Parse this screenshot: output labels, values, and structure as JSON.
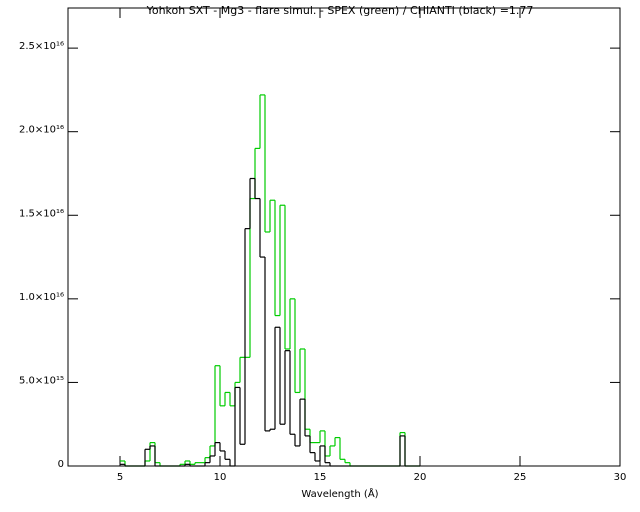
{
  "chart_data": {
    "type": "histogram",
    "title": "Yohkoh SXT - Mg3 - flare simul. -  SPEX (green) / CHIANTI (black) =1.77",
    "xlabel": "Wavelength (Å)",
    "bins": [
      5,
      5.25,
      5.5,
      5.75,
      6,
      6.25,
      6.5,
      6.75,
      7,
      7.25,
      7.5,
      7.75,
      8,
      8.25,
      8.5,
      8.75,
      9,
      9.25,
      9.5,
      9.75,
      10,
      10.25,
      10.5,
      10.75,
      11,
      11.25,
      11.5,
      11.75,
      12,
      12.25,
      12.5,
      12.75,
      13,
      13.25,
      13.5,
      13.75,
      14,
      14.25,
      14.5,
      14.75,
      15,
      15.25,
      15.5,
      15.75,
      16,
      16.25,
      16.5,
      16.75,
      17,
      17.25,
      17.5,
      17.75,
      18,
      18.25,
      18.5,
      18.75,
      19,
      19.25,
      19.5,
      19.75,
      20
    ],
    "series": [
      {
        "name": "SPEX",
        "color": "#00cc00",
        "values": [
          300000000000000.0,
          0,
          0,
          0,
          0,
          300000000000000.0,
          1400000000000000.0,
          200000000000000.0,
          0,
          0,
          0,
          0,
          100000000000000.0,
          300000000000000.0,
          100000000000000.0,
          200000000000000.0,
          200000000000000.0,
          500000000000000.0,
          1200000000000000.0,
          6000000000000000.0,
          3600000000000000.0,
          4400000000000000.0,
          3600000000000000.0,
          5000000000000000.0,
          6500000000000000.0,
          6500000000000000.0,
          1.6e+16,
          1.9e+16,
          2.22e+16,
          1.4e+16,
          1.59e+16,
          9000000000000000.0,
          1.56e+16,
          7000000000000000.0,
          1e+16,
          4400000000000000.0,
          7000000000000000.0,
          2200000000000000.0,
          1400000000000000.0,
          1400000000000000.0,
          2100000000000000.0,
          600000000000000.0,
          1200000000000000.0,
          1700000000000000.0,
          400000000000000.0,
          200000000000000.0,
          0,
          0,
          0,
          0,
          0,
          0,
          0,
          0,
          0,
          0,
          2000000000000000.0,
          0,
          0,
          0
        ]
      },
      {
        "name": "CHIANTI",
        "color": "#000000",
        "values": [
          100000000000000.0,
          0,
          0,
          0,
          0,
          1000000000000000.0,
          1200000000000000.0,
          0,
          0,
          0,
          0,
          0,
          0,
          100000000000000.0,
          0,
          0,
          0,
          200000000000000.0,
          600000000000000.0,
          1400000000000000.0,
          900000000000000.0,
          400000000000000.0,
          0,
          4700000000000000.0,
          1300000000000000.0,
          1.42e+16,
          1.72e+16,
          1.6e+16,
          1.25e+16,
          2100000000000000.0,
          2200000000000000.0,
          8300000000000000.0,
          2500000000000000.0,
          6900000000000000.0,
          1900000000000000.0,
          1200000000000000.0,
          4000000000000000.0,
          1800000000000000.0,
          800000000000000.0,
          300000000000000.0,
          1200000000000000.0,
          200000000000000.0,
          0,
          0,
          0,
          0,
          0,
          0,
          0,
          0,
          0,
          0,
          0,
          0,
          0,
          0,
          1800000000000000.0,
          0,
          0,
          0
        ]
      }
    ],
    "xlim": [
      2.4,
      30
    ],
    "xticks": [
      5,
      10,
      15,
      20,
      25,
      30
    ],
    "ylim": [
      0,
      2.74e+16
    ],
    "yticks": [
      0,
      {
        "value": 5000000000000000.0,
        "label": "5.0×10¹⁵"
      },
      {
        "value": 1e+16,
        "label": "1.0×10¹⁶"
      },
      {
        "value": 1.5e+16,
        "label": "1.5×10¹⁶"
      },
      {
        "value": 2e+16,
        "label": "2.0×10¹⁶"
      },
      {
        "value": 2.5e+16,
        "label": "2.5×10¹⁶"
      }
    ]
  }
}
